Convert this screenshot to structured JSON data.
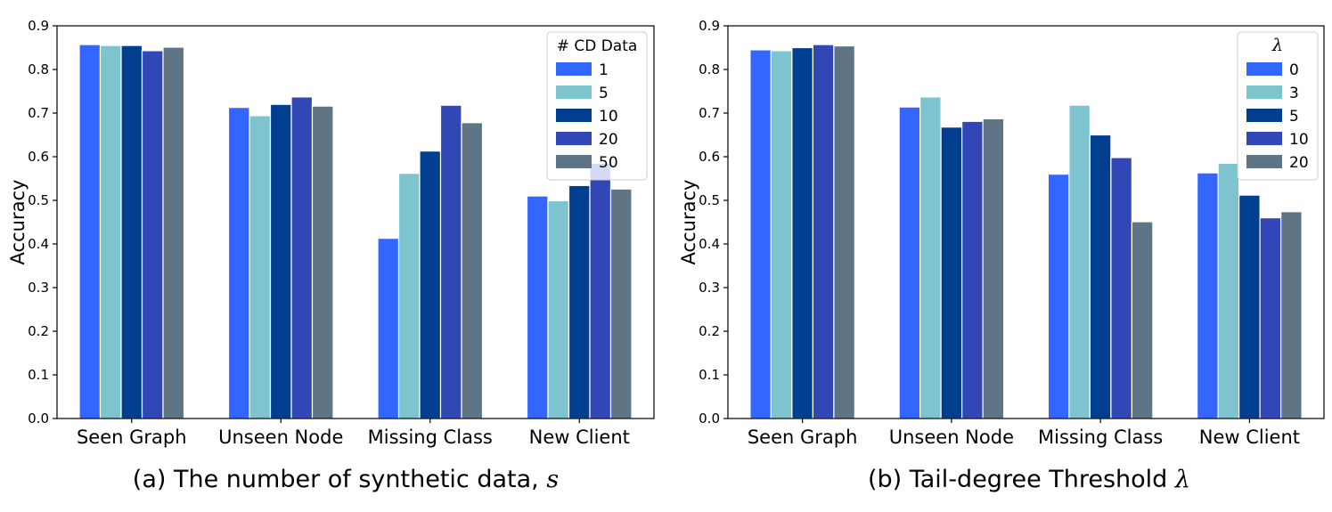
{
  "colors": [
    "#3366ff",
    "#7ec4cf",
    "#003f8f",
    "#3047b5",
    "#5f7586"
  ],
  "chart_data": [
    {
      "type": "bar",
      "caption": "(a) The number of synthetic data, ",
      "caption_var": "s",
      "categories": [
        "Seen Graph",
        "Unseen Node",
        "Missing Class",
        "New Client"
      ],
      "ylabel": "Accuracy",
      "xlabel": "",
      "ylim": [
        0.0,
        0.9
      ],
      "yticks": [
        "0.0",
        "0.1",
        "0.2",
        "0.3",
        "0.4",
        "0.5",
        "0.6",
        "0.7",
        "0.8",
        "0.9"
      ],
      "legend_title": "# CD Data",
      "legend_title_italic": false,
      "legend_position": "top-right",
      "series": [
        {
          "name": "1",
          "values": [
            0.857,
            0.713,
            0.413,
            0.51
          ]
        },
        {
          "name": "5",
          "values": [
            0.855,
            0.694,
            0.562,
            0.499
          ]
        },
        {
          "name": "10",
          "values": [
            0.855,
            0.72,
            0.613,
            0.534
          ]
        },
        {
          "name": "20",
          "values": [
            0.843,
            0.737,
            0.718,
            0.585
          ]
        },
        {
          "name": "50",
          "values": [
            0.851,
            0.716,
            0.678,
            0.526
          ]
        }
      ]
    },
    {
      "type": "bar",
      "caption": "(b) Tail-degree Threshold ",
      "caption_var": "λ",
      "categories": [
        "Seen Graph",
        "Unseen Node",
        "Missing Class",
        "New Client"
      ],
      "ylabel": "Accuracy",
      "xlabel": "",
      "ylim": [
        0.0,
        0.9
      ],
      "yticks": [
        "0.0",
        "0.1",
        "0.2",
        "0.3",
        "0.4",
        "0.5",
        "0.6",
        "0.7",
        "0.8",
        "0.9"
      ],
      "legend_title": "λ",
      "legend_title_italic": true,
      "legend_position": "top-right",
      "series": [
        {
          "name": "0",
          "values": [
            0.845,
            0.714,
            0.56,
            0.563
          ]
        },
        {
          "name": "3",
          "values": [
            0.843,
            0.737,
            0.718,
            0.585
          ]
        },
        {
          "name": "5",
          "values": [
            0.85,
            0.668,
            0.65,
            0.512
          ]
        },
        {
          "name": "10",
          "values": [
            0.857,
            0.681,
            0.598,
            0.46
          ]
        },
        {
          "name": "20",
          "values": [
            0.854,
            0.687,
            0.451,
            0.474
          ]
        }
      ]
    }
  ]
}
